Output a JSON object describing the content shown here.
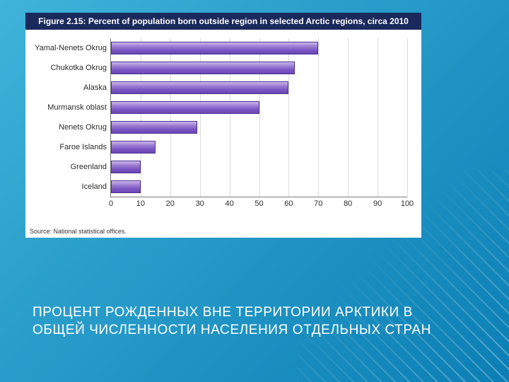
{
  "slide": {
    "caption": "ПРОЦЕНТ РОЖДЕННЫХ ВНЕ ТЕРРИТОРИИ АРКТИКИ В ОБЩЕЙ ЧИСЛЕННОСТИ НАСЕЛЕНИЯ ОТДЕЛЬНЫХ СТРАН",
    "bg_gradient_from": "#3fb3d9",
    "bg_gradient_to": "#0b7fb5"
  },
  "chart": {
    "type": "bar-horizontal",
    "title": "Figure 2.15: Percent of population born outside region in selected Arctic regions, circa 2010",
    "title_bg": "#1a2a5c",
    "title_color": "#ffffff",
    "title_fontsize": 12,
    "source": "Source: National statistical offices.",
    "background_color": "#ffffff",
    "axis_color": "#7a7a7a",
    "grid_color": "#dcdcdc",
    "bar_fill_top": "#cab8ea",
    "bar_fill_mid": "#9c7dd3",
    "bar_fill_bot": "#6a46b5",
    "bar_border": "#4a3090",
    "label_fontsize": 11,
    "x_axis": {
      "min": 0,
      "max": 100,
      "tick_step": 10,
      "ticks": [
        0,
        10,
        20,
        30,
        40,
        50,
        60,
        70,
        80,
        90,
        100
      ]
    },
    "categories": [
      {
        "label": "Yamal-Nenets Okrug",
        "value": 70
      },
      {
        "label": "Chukotka Okrug",
        "value": 62
      },
      {
        "label": "Alaska",
        "value": 60
      },
      {
        "label": "Murmansk oblast",
        "value": 50
      },
      {
        "label": "Nenets Okrug",
        "value": 29
      },
      {
        "label": "Faroe Islands",
        "value": 15
      },
      {
        "label": "Greenland",
        "value": 10
      },
      {
        "label": "Iceland",
        "value": 10
      }
    ]
  }
}
